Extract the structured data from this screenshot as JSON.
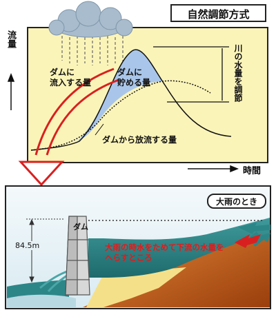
{
  "top_diagram": {
    "title": "自然調節方式",
    "y_axis_label": "流量",
    "x_axis_label": "時間",
    "inflow_label": "ダムに\n流入する量",
    "storage_label": "ダムに\n貯める量",
    "outflow_label": "ダムから放流する量",
    "river_volume_label": "川の水量を調節",
    "colors": {
      "background": "#fbf4b9",
      "storage_fill": "#a9c6ea",
      "arrow": "#d92020",
      "cloud": "#a8bccd"
    }
  },
  "bottom_diagram": {
    "badge": "大雨のとき",
    "dam_label": "ダム",
    "height_label": "84.5m",
    "annotation": "大雨の時水をためて下流の水量を\nへらすところ",
    "colors": {
      "sky": "#e6f1f6",
      "water": "#2c8688",
      "mountain": "#c25a14",
      "sand": "#f5e08a",
      "annotation_text": "#e81818"
    }
  }
}
